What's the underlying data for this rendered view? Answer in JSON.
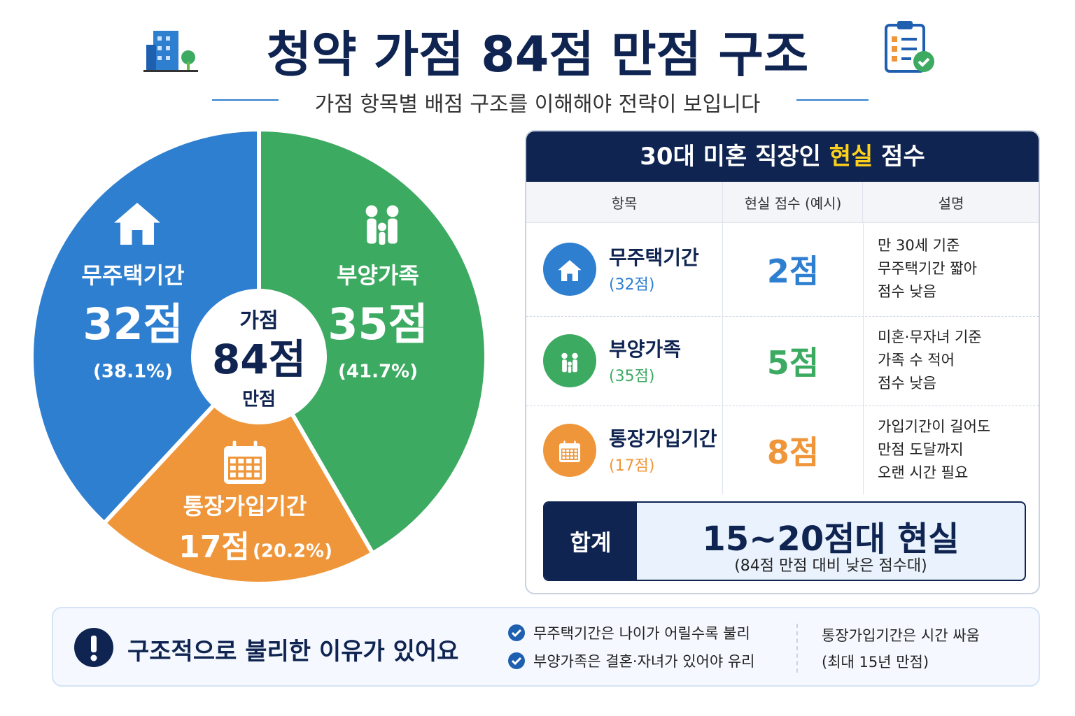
{
  "header": {
    "title": "청약 가점 84점 만점 구조",
    "subtitle": "가점 항목별 배점 구조를 이해해야 전략이 보입니다"
  },
  "chart_data": {
    "type": "pie",
    "categories": [
      "무주택기간",
      "부양가족",
      "통장가입기간"
    ],
    "values": [
      32,
      35,
      17
    ],
    "value_labels": [
      "32점",
      "35점",
      "17점"
    ],
    "percent_labels": [
      "(38.1%)",
      "(41.7%)",
      "(20.2%)"
    ],
    "colors": [
      "#2f7fd0",
      "#3daa62",
      "#f0963a"
    ],
    "center_label": [
      "가점",
      "84점",
      "만점"
    ]
  },
  "table": {
    "title": [
      "30대 미혼 직장인 ",
      "현실",
      " 점수"
    ],
    "headers": [
      "항목",
      "현실 점수 (예시)",
      "설명"
    ],
    "rows": [
      {
        "name": "무주택기간",
        "max": "(32점)",
        "score": "2점",
        "color": "#2f7fd0",
        "desc": [
          "만 30세 기준",
          "무주택기간 짧아",
          "점수 낮음"
        ]
      },
      {
        "name": "부양가족",
        "max": "(35점)",
        "score": "5점",
        "color": "#3daa62",
        "desc": [
          "미혼·무자녀 기준",
          "가족 수 적어",
          "점수 낮음"
        ]
      },
      {
        "name": "통장가입기간",
        "max": "(17점)",
        "score": "8점",
        "color": "#f0963a",
        "desc": [
          "가입기간이 길어도",
          "만점 도달까지",
          "오랜 시간 필요"
        ]
      }
    ],
    "total": {
      "label": "합계",
      "value": "15~20점대 현실",
      "note": "(84점 만점 대비 낮은 점수대)"
    }
  },
  "footer": {
    "title": "구조적으로 불리한 이유가 있어요",
    "bullets": [
      "무주택기간은 나이가 어릴수록 불리",
      "부양가족은 결혼·자녀가 있어야 유리"
    ],
    "note": [
      "통장가입기간은 시간 싸움",
      "(최대 15년 만점)"
    ]
  }
}
